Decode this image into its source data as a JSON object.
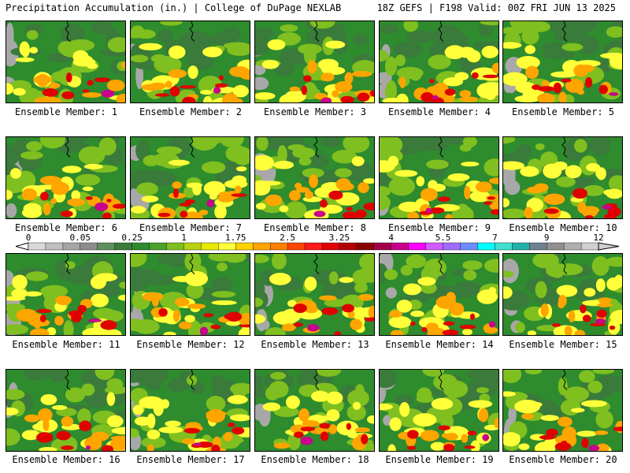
{
  "header": {
    "left_text": "Precipitation Accumulation (in.) | College of DuPage NEXLAB",
    "right_text": "18Z GEFS | F198 Valid: 00Z FRI JUN 13 2025"
  },
  "colors": {
    "background": "#ffffff",
    "panel_base": "#2e8b2e",
    "panel_border": "#000000"
  },
  "colorbar": {
    "tick_labels": [
      "0",
      "0.05",
      "0.25",
      "1",
      "1.75",
      "2.5",
      "3.25",
      "4",
      "5.5",
      "7",
      "9",
      "12"
    ],
    "colors": [
      "#d9d9d9",
      "#bfbfbf",
      "#a6a6a6",
      "#8c8c8c",
      "#5f8f5f",
      "#3a7a3a",
      "#2e8b2e",
      "#4aa02a",
      "#7fbf1f",
      "#b6d30f",
      "#e8e800",
      "#ffff3a",
      "#ffd200",
      "#ffa500",
      "#ff7f00",
      "#ff4500",
      "#ff1a1a",
      "#e00000",
      "#b40000",
      "#8b0000",
      "#a0004a",
      "#c8008c",
      "#ff00ff",
      "#d25aff",
      "#a06cff",
      "#6b8cff",
      "#00ffff",
      "#40e0d0",
      "#20b2aa",
      "#708090",
      "#909090",
      "#b0b0b0",
      "#d0d0d0"
    ]
  },
  "members": [
    {
      "label": "Ensemble Member: 1"
    },
    {
      "label": "Ensemble Member: 2"
    },
    {
      "label": "Ensemble Member: 3"
    },
    {
      "label": "Ensemble Member: 4"
    },
    {
      "label": "Ensemble Member: 5"
    },
    {
      "label": "Ensemble Member: 6"
    },
    {
      "label": "Ensemble Member: 7"
    },
    {
      "label": "Ensemble Member: 8"
    },
    {
      "label": "Ensemble Member: 9"
    },
    {
      "label": "Ensemble Member: 10"
    },
    {
      "label": "Ensemble Member: 11"
    },
    {
      "label": "Ensemble Member: 12"
    },
    {
      "label": "Ensemble Member: 13"
    },
    {
      "label": "Ensemble Member: 14"
    },
    {
      "label": "Ensemble Member: 15"
    },
    {
      "label": "Ensemble Member: 16"
    },
    {
      "label": "Ensemble Member: 17"
    },
    {
      "label": "Ensemble Member: 18"
    },
    {
      "label": "Ensemble Member: 19"
    },
    {
      "label": "Ensemble Member: 20"
    }
  ]
}
